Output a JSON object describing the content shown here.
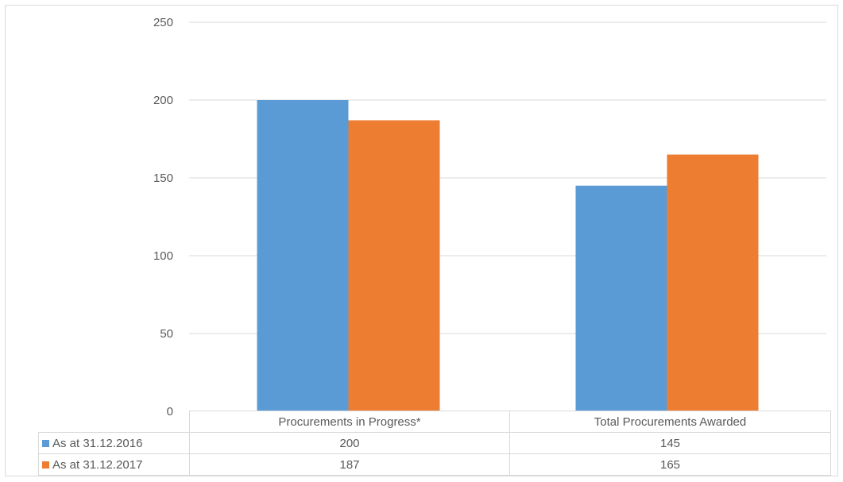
{
  "chart_data": {
    "type": "bar",
    "categories": [
      "Procurements in Progress*",
      "Total Procurements Awarded"
    ],
    "series": [
      {
        "name": "As at 31.12.2016",
        "values": [
          200,
          145
        ],
        "color": "#5b9bd5"
      },
      {
        "name": "As at 31.12.2017",
        "values": [
          187,
          165
        ],
        "color": "#ed7d31"
      }
    ],
    "y_ticks": [
      "0",
      "50",
      "100",
      "150",
      "200",
      "250"
    ],
    "ylim": [
      0,
      250
    ],
    "grid": true,
    "legend": "data-table",
    "data_table": {
      "rows": [
        {
          "label": "As at 31.12.2016",
          "cells": [
            "200",
            "145"
          ]
        },
        {
          "label": "As at 31.12.2017",
          "cells": [
            "187",
            "165"
          ]
        }
      ]
    }
  }
}
